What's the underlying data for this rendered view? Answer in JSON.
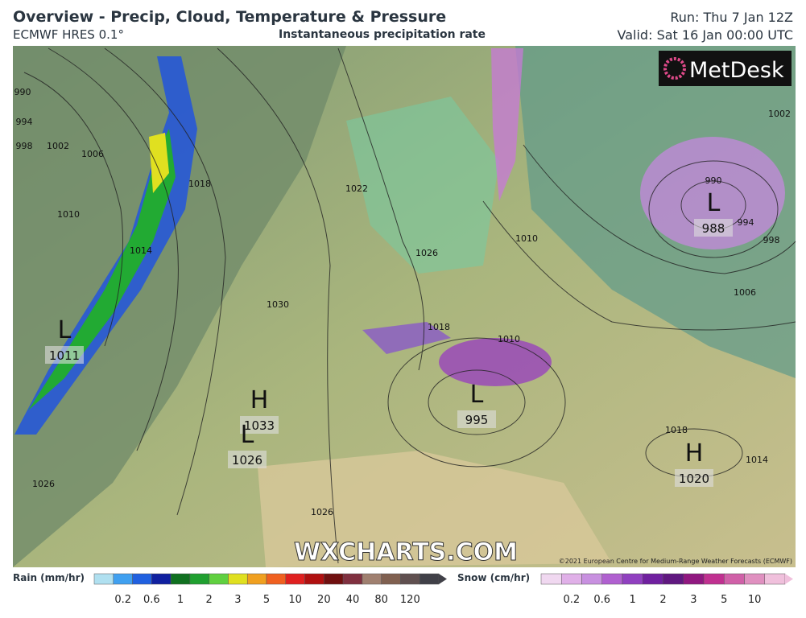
{
  "header": {
    "title": "Overview - Precip, Cloud, Temperature & Pressure",
    "model": "ECMWF HRES 0.1°",
    "subtitle": "Instantaneous precipitation rate",
    "run": "Run: Thu 7 Jan 12Z",
    "valid": "Valid: Sat 16 Jan 00:00 UTC"
  },
  "map": {
    "logo": "MetDesk",
    "watermark": "WXCHARTS.COM",
    "copyright": "©2021 European Centre for Medium-Range Weather Forecasts (ECMWF)",
    "centers": [
      {
        "symbol": "L",
        "pressure": "1011"
      },
      {
        "symbol": "H",
        "pressure": "1033"
      },
      {
        "symbol": "L",
        "pressure": "1026"
      },
      {
        "symbol": "L",
        "pressure": "995"
      },
      {
        "symbol": "L",
        "pressure": "988"
      },
      {
        "symbol": "H",
        "pressure": "1020"
      }
    ],
    "isobars": [
      "990",
      "994",
      "998",
      "1002",
      "1006",
      "1010",
      "1014",
      "1018",
      "1022",
      "1026",
      "1030",
      "1010",
      "1018",
      "1010",
      "1002",
      "990",
      "994",
      "998",
      "1006",
      "1018",
      "1026",
      "1026",
      "1014"
    ]
  },
  "legend": {
    "rain": {
      "label": "Rain (mm/hr)",
      "ticks": [
        "0.2",
        "0.6",
        "1",
        "2",
        "3",
        "5",
        "10",
        "20",
        "40",
        "80",
        "120"
      ]
    },
    "snow": {
      "label": "Snow (cm/hr)",
      "ticks": [
        "0.2",
        "0.6",
        "1",
        "2",
        "3",
        "5",
        "10"
      ]
    }
  }
}
